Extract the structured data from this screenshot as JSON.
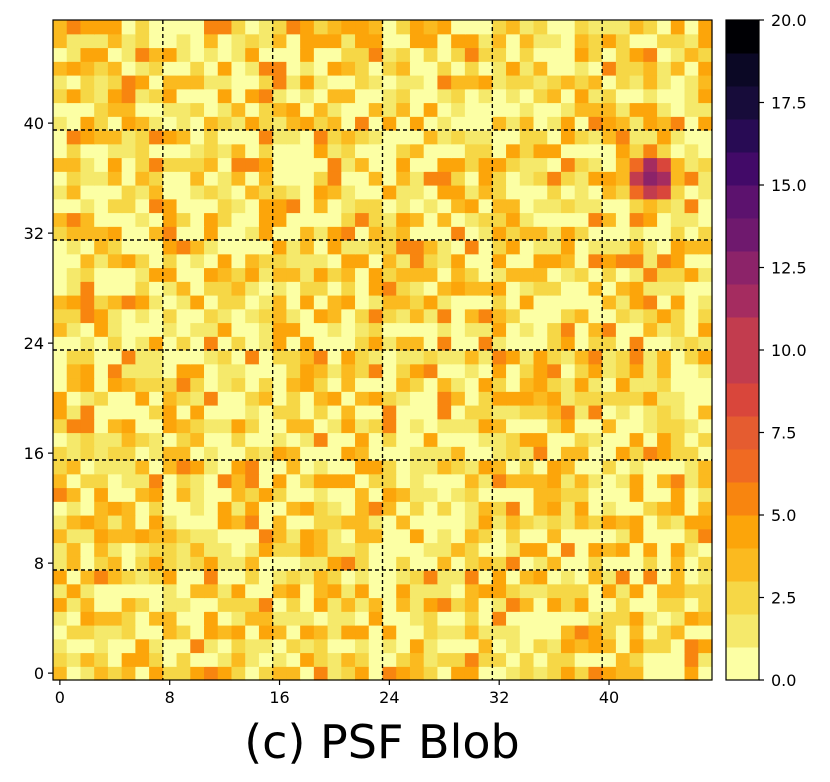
{
  "chart_data": {
    "type": "heatmap",
    "title": "(c) PSF Blob",
    "xlabel": "",
    "ylabel": "",
    "grid_size": 48,
    "x_range": [
      -0.5,
      47.5
    ],
    "y_range": [
      -0.5,
      47.5
    ],
    "x_ticks": [
      0,
      8,
      16,
      24,
      32,
      40
    ],
    "y_ticks": [
      0,
      8,
      16,
      24,
      32,
      40
    ],
    "x_tick_labels": [
      "0",
      "8",
      "16",
      "24",
      "32",
      "40"
    ],
    "y_tick_labels": [
      "0",
      "8",
      "16",
      "24",
      "32",
      "40"
    ],
    "dashed_grid_lines": [
      7.5,
      15.5,
      23.5,
      31.5,
      39.5
    ],
    "colormap": "inferno_r",
    "colormap_stops": [
      "#fcffa4",
      "#f5e96b",
      "#f6d746",
      "#fbba1f",
      "#fca50a",
      "#f8850f",
      "#f06a22",
      "#e55c30",
      "#d9463b",
      "#c23c4e",
      "#a52c60",
      "#8c2369",
      "#6f196e",
      "#5c126e",
      "#420a68",
      "#280b54",
      "#170c3a",
      "#0b0825",
      "#000004"
    ],
    "colorbar": {
      "vmin": 0.0,
      "vmax": 20.0,
      "ticks": [
        0.0,
        2.5,
        5.0,
        7.5,
        10.0,
        12.5,
        15.0,
        17.5,
        20.0
      ],
      "tick_labels": [
        "0.0",
        "2.5",
        "5.0",
        "7.5",
        "10.0",
        "12.5",
        "15.0",
        "17.5",
        "20.0"
      ],
      "levels": 20
    },
    "background_value_range": [
      0.0,
      5.5
    ],
    "blob": {
      "center": [
        43,
        36
      ],
      "peak_value": 15.6,
      "spread": 1.2
    },
    "noise_seed": 20240517
  }
}
